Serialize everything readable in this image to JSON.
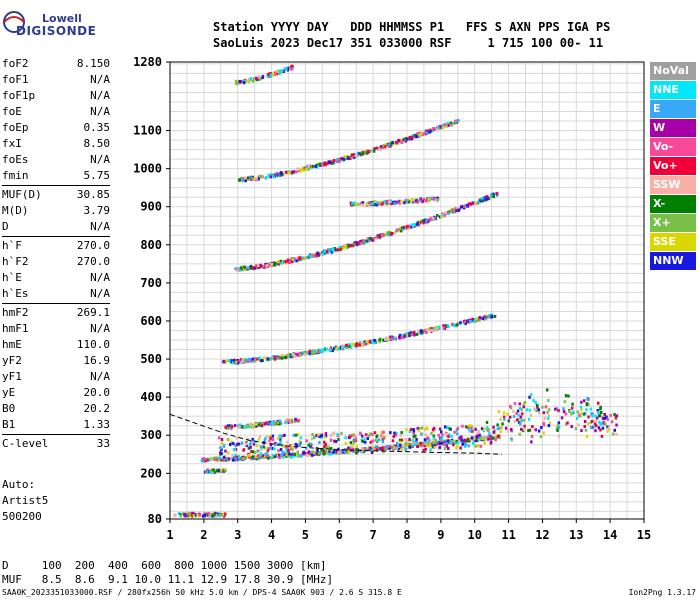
{
  "logo": {
    "line1": "Lowell",
    "line2": "DIGISONDE"
  },
  "header": {
    "line1": "Station YYYY DAY   DDD HHMMSS P1   FFS S AXN PPS IGA PS",
    "line2": "SaoLuis 2023 Dec17 351 033000 RSF     1 715 100 00- 11"
  },
  "params": [
    {
      "name": "foF2",
      "value": "8.150"
    },
    {
      "name": "foF1",
      "value": "N/A"
    },
    {
      "name": "foF1p",
      "value": "N/A"
    },
    {
      "name": "foE",
      "value": "N/A"
    },
    {
      "name": "foEp",
      "value": "0.35"
    },
    {
      "name": "fxI",
      "value": "8.50"
    },
    {
      "name": "foEs",
      "value": "N/A"
    },
    {
      "name": "fmin",
      "value": "5.75"
    },
    {
      "name": "MUF(D)",
      "value": "30.85"
    },
    {
      "name": "M(D)",
      "value": "3.79"
    },
    {
      "name": "D",
      "value": "N/A"
    },
    {
      "name": "h`F",
      "value": "270.0"
    },
    {
      "name": "h`F2",
      "value": "270.0"
    },
    {
      "name": "h`E",
      "value": "N/A"
    },
    {
      "name": "h`Es",
      "value": "N/A"
    },
    {
      "name": "hmF2",
      "value": "269.1"
    },
    {
      "name": "hmF1",
      "value": "N/A"
    },
    {
      "name": "hmE",
      "value": "110.0"
    },
    {
      "name": "yF2",
      "value": "16.9"
    },
    {
      "name": "yF1",
      "value": "N/A"
    },
    {
      "name": "yE",
      "value": "20.0"
    },
    {
      "name": "B0",
      "value": "20.2"
    },
    {
      "name": "B1",
      "value": "1.33"
    },
    {
      "name": "C-level",
      "value": "33"
    }
  ],
  "param_separators_after": [
    7,
    10,
    14,
    22
  ],
  "auto": {
    "line1": "Auto:",
    "line2": "Artist5",
    "line3": "500200"
  },
  "distance_table": {
    "line1": "D     100  200  400  600  800 1000 1500 3000 [km]",
    "line2": "MUF   8.5  8.6  9.1 10.0 11.1 12.9 17.8 30.9 [MHz]"
  },
  "footer": {
    "left": "SAA0K_2023351033000.RSF / 280fx256h 50 kHz 5.0 km / DPS-4 SAA0K 903 / 2.6 S 315.8 E",
    "right": "Ion2Png 1.3.17"
  },
  "legend": [
    {
      "label": "NoVal",
      "color": "#a0a0a0"
    },
    {
      "label": "NNE",
      "color": "#00e8f8"
    },
    {
      "label": "E",
      "color": "#38a8f8"
    },
    {
      "label": "W",
      "color": "#a800a8"
    },
    {
      "label": "Vo-",
      "color": "#f84898"
    },
    {
      "label": "Vo+",
      "color": "#f00038"
    },
    {
      "label": "SSW",
      "color": "#f8b0a8"
    },
    {
      "label": "X-",
      "color": "#008000"
    },
    {
      "label": "X+",
      "color": "#78c048"
    },
    {
      "label": "SSE",
      "color": "#d8d800"
    },
    {
      "label": "NNW",
      "color": "#1818e0"
    }
  ],
  "chart_data": {
    "type": "scatter",
    "xlabel": "",
    "ylabel": "",
    "xlim": [
      1,
      15
    ],
    "ylim": [
      80,
      1280
    ],
    "x_ticks": [
      1,
      2,
      3,
      4,
      5,
      6,
      7,
      8,
      9,
      10,
      11,
      12,
      13,
      14,
      15
    ],
    "y_ticks": [
      80,
      200,
      300,
      400,
      500,
      600,
      700,
      800,
      900,
      1000,
      1100,
      1280
    ],
    "grid": true,
    "traces": [
      {
        "name": "Es trace 1",
        "x_start": 1.1,
        "x_end": 2.6,
        "h_start": 95,
        "h_end": 95
      },
      {
        "name": "low trace",
        "x_start": 2.0,
        "x_end": 2.6,
        "h_start": 210,
        "h_end": 210
      },
      {
        "name": "F1 trace",
        "x_start": 1.9,
        "x_end": 10.7,
        "h_start": 240,
        "h_end": 300
      },
      {
        "name": "F spread",
        "x_start": 2.4,
        "x_end": 14.2,
        "h_start": 270,
        "h_end": 330
      },
      {
        "name": "upper trace",
        "x_start": 2.6,
        "x_end": 4.8,
        "h_start": 325,
        "h_end": 345
      },
      {
        "name": "2nd hop",
        "x_start": 2.5,
        "x_end": 10.6,
        "h_start": 495,
        "h_end": 620
      },
      {
        "name": "3rd hop",
        "x_start": 2.9,
        "x_end": 10.7,
        "h_start": 740,
        "h_end": 940
      },
      {
        "name": "4th hop",
        "x_start": 3.0,
        "x_end": 9.5,
        "h_start": 975,
        "h_end": 1130
      },
      {
        "name": "5th hop",
        "x_start": 2.9,
        "x_end": 4.6,
        "h_start": 1230,
        "h_end": 1270
      },
      {
        "name": "middle fragment",
        "x_start": 6.3,
        "x_end": 8.9,
        "h_start": 910,
        "h_end": 925
      }
    ],
    "model_profile": {
      "x": [
        1.0,
        1.8,
        2.6,
        3.4,
        4.6,
        6.0,
        7.4,
        8.8,
        10.0,
        10.8
      ],
      "h": [
        355,
        330,
        305,
        285,
        270,
        262,
        258,
        255,
        253,
        250
      ]
    }
  }
}
